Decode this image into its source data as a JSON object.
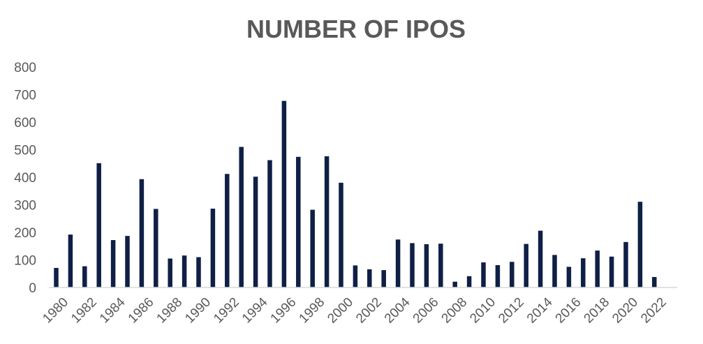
{
  "chart_data": {
    "type": "bar",
    "title": "NUMBER OF IPOS",
    "xlabel": "",
    "ylabel": "",
    "ylim": [
      0,
      800
    ],
    "yticks": [
      0,
      100,
      200,
      300,
      400,
      500,
      600,
      700,
      800
    ],
    "categories": [
      "1980",
      "1981",
      "1982",
      "1983",
      "1984",
      "1985",
      "1986",
      "1987",
      "1988",
      "1989",
      "1990",
      "1991",
      "1992",
      "1993",
      "1994",
      "1995",
      "1996",
      "1997",
      "1998",
      "1999",
      "2000",
      "2001",
      "2002",
      "2003",
      "2004",
      "2005",
      "2006",
      "2007",
      "2008",
      "2009",
      "2010",
      "2011",
      "2012",
      "2013",
      "2014",
      "2015",
      "2016",
      "2017",
      "2018",
      "2019",
      "2020",
      "2021",
      "2022"
    ],
    "xtick_labels": [
      "1980",
      "1982",
      "1984",
      "1986",
      "1988",
      "1990",
      "1992",
      "1994",
      "1996",
      "1998",
      "2000",
      "2002",
      "2004",
      "2006",
      "2008",
      "2010",
      "2012",
      "2014",
      "2016",
      "2018",
      "2020",
      "2022"
    ],
    "values": [
      71,
      192,
      77,
      451,
      172,
      187,
      393,
      285,
      105,
      116,
      110,
      286,
      412,
      510,
      402,
      462,
      677,
      474,
      282,
      476,
      380,
      80,
      66,
      63,
      174,
      161,
      157,
      159,
      21,
      41,
      91,
      81,
      93,
      158,
      206,
      118,
      75,
      106,
      134,
      112,
      165,
      311,
      38
    ],
    "grid": false,
    "legend": "none",
    "colors": {
      "bar": "#0f1f45",
      "text": "#595959",
      "axis": "#d9d9d9"
    }
  }
}
